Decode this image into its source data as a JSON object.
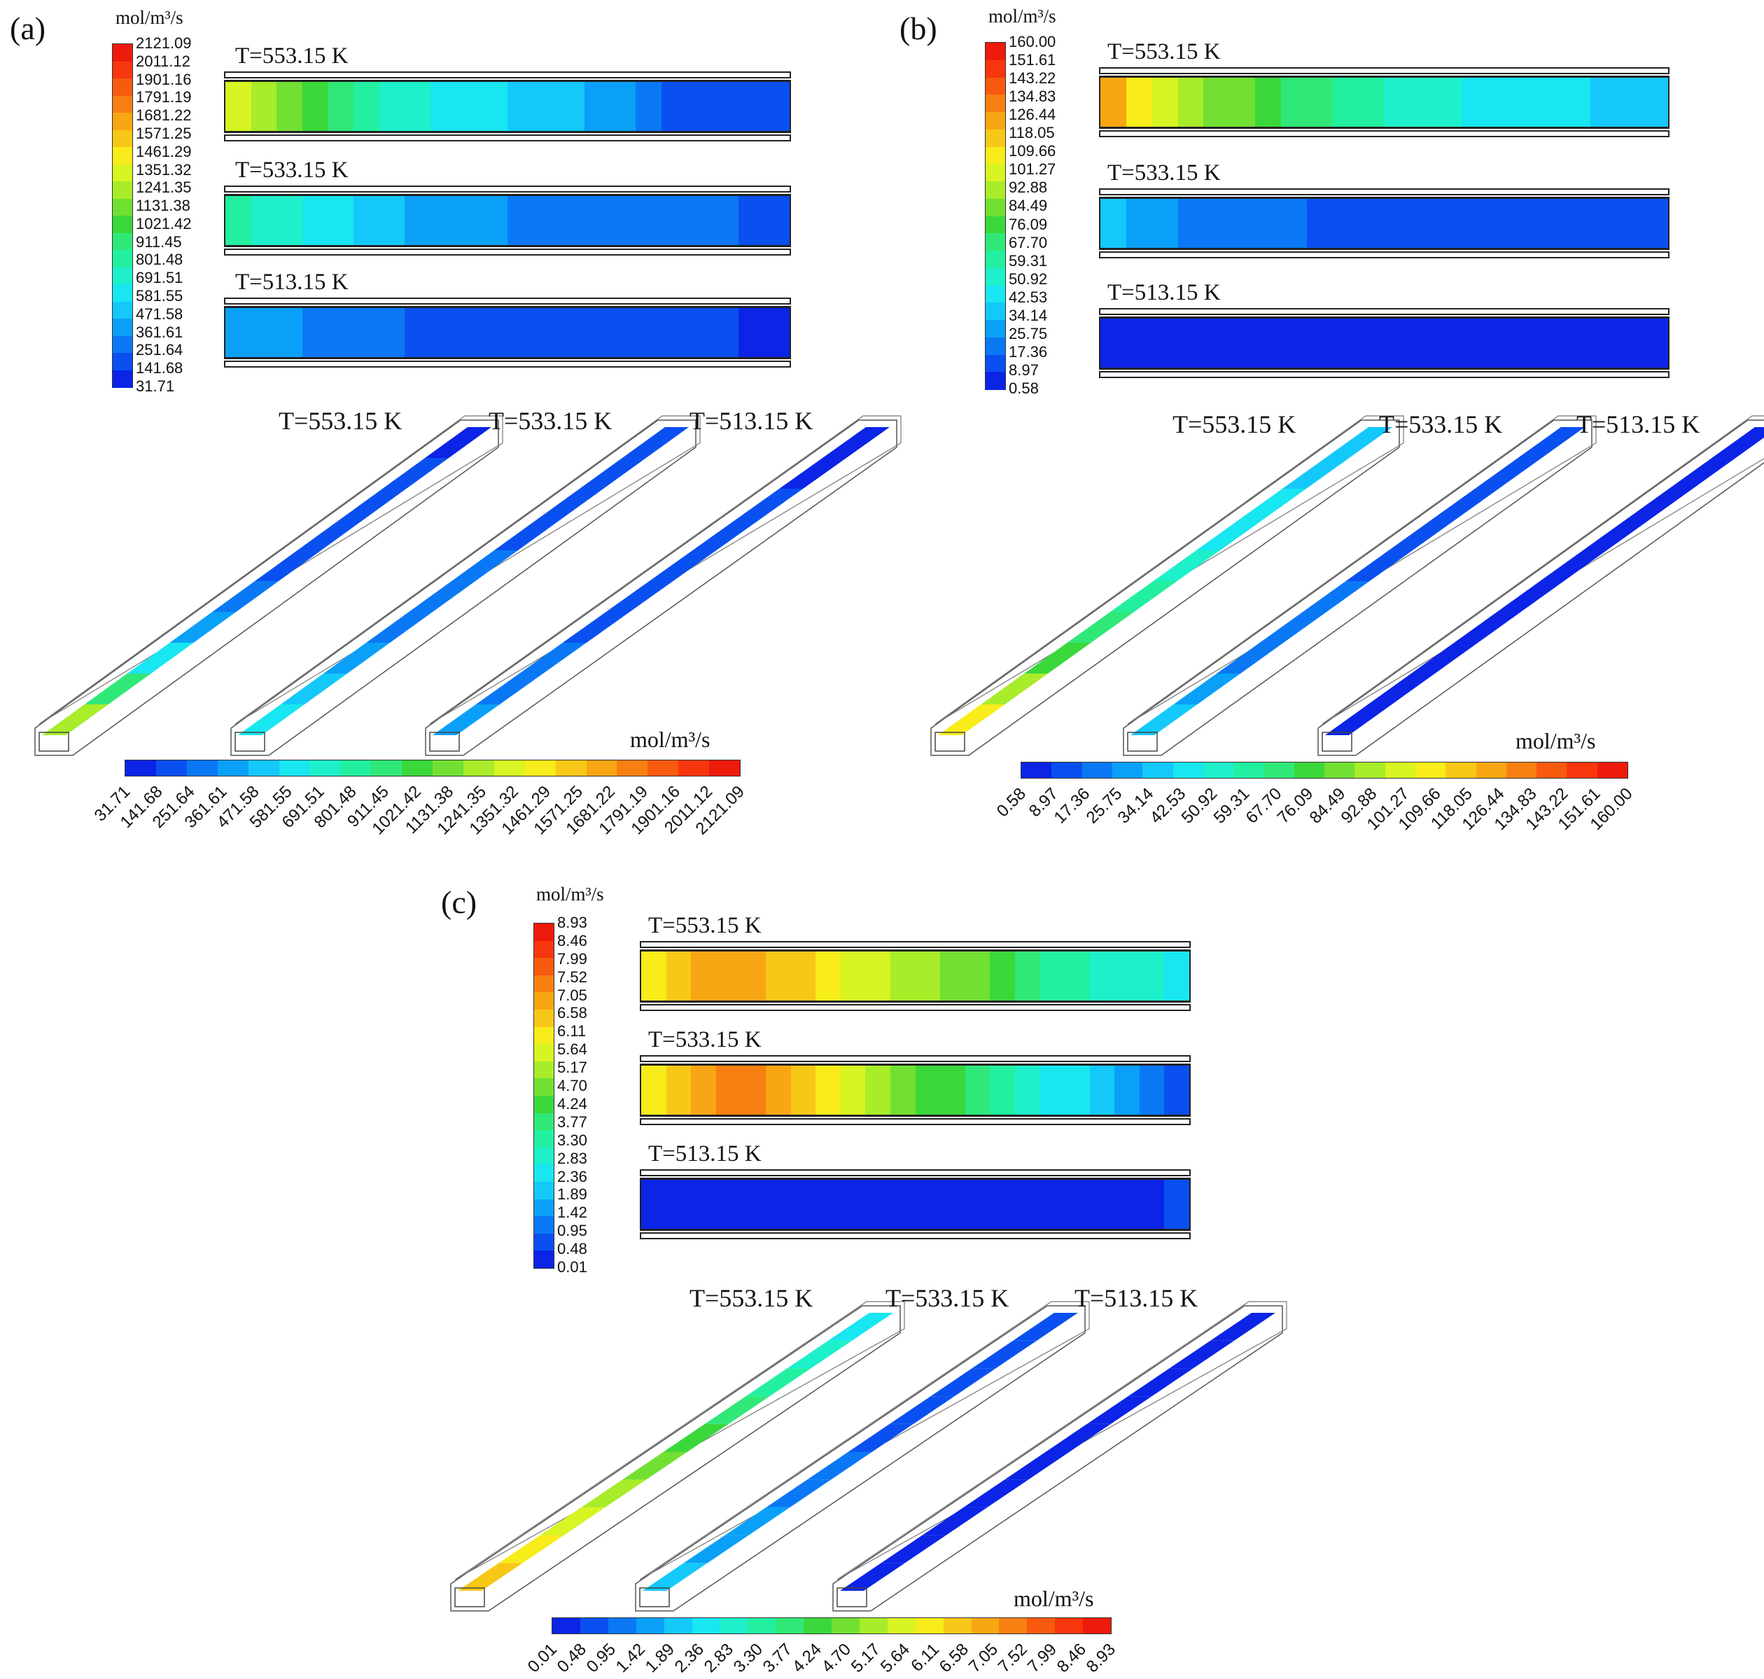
{
  "panels": [
    {
      "label": "(a)",
      "unit": "mol/m³/s",
      "scale_values": [
        "31.71",
        "141.68",
        "251.64",
        "361.61",
        "471.58",
        "581.55",
        "691.51",
        "801.48",
        "911.45",
        "1021.42",
        "1131.38",
        "1241.35",
        "1351.32",
        "1461.29",
        "1571.25",
        "1681.22",
        "1791.19",
        "1901.16",
        "2011.12",
        "2121.09"
      ],
      "rows": [
        {
          "temperature": "T=553.15 K",
          "levels": [
            12,
            11,
            10,
            9,
            8,
            7,
            6,
            6,
            5,
            5,
            5,
            4,
            4,
            4,
            3,
            3,
            2,
            1,
            1,
            1,
            1,
            1
          ]
        },
        {
          "temperature": "T=533.15 K",
          "levels": [
            7,
            6,
            6,
            5,
            5,
            4,
            4,
            3,
            3,
            3,
            3,
            2,
            2,
            2,
            2,
            2,
            2,
            2,
            2,
            2,
            1,
            1
          ]
        },
        {
          "temperature": "T=513.15 K",
          "levels": [
            3,
            3,
            3,
            2,
            2,
            2,
            2,
            1,
            1,
            1,
            1,
            1,
            1,
            1,
            1,
            1,
            1,
            1,
            1,
            1,
            0,
            0
          ]
        }
      ],
      "views_3d": [
        {
          "temperature": "T=553.15 K",
          "levels": [
            11,
            8,
            5,
            3,
            2,
            1,
            1,
            1,
            1,
            0
          ]
        },
        {
          "temperature": "T=533.15 K",
          "levels": [
            5,
            4,
            3,
            2,
            2,
            2,
            1,
            1,
            1,
            1
          ]
        },
        {
          "temperature": "T=513.15 K",
          "levels": [
            3,
            2,
            2,
            1,
            1,
            1,
            1,
            1,
            0,
            0
          ]
        }
      ]
    },
    {
      "label": "(b)",
      "unit": "mol/m³/s",
      "scale_values": [
        "0.58",
        "8.97",
        "17.36",
        "25.75",
        "34.14",
        "42.53",
        "50.92",
        "59.31",
        "67.70",
        "76.09",
        "84.49",
        "92.88",
        "101.27",
        "109.66",
        "118.05",
        "126.44",
        "134.83",
        "143.22",
        "151.61",
        "160.00"
      ],
      "rows": [
        {
          "temperature": "T=553.15 K",
          "levels": [
            15,
            13,
            12,
            11,
            10,
            10,
            9,
            8,
            8,
            7,
            7,
            6,
            6,
            6,
            5,
            5,
            5,
            5,
            5,
            4,
            4,
            4
          ]
        },
        {
          "temperature": "T=533.15 K",
          "levels": [
            4,
            3,
            3,
            2,
            2,
            2,
            2,
            2,
            1,
            1,
            1,
            1,
            1,
            1,
            1,
            1,
            1,
            1,
            1,
            1,
            1,
            1
          ]
        },
        {
          "temperature": "T=513.15 K",
          "levels": [
            0,
            0,
            0,
            0,
            0,
            0,
            0,
            0,
            0,
            0,
            0,
            0,
            0,
            0,
            0,
            0,
            0,
            0,
            0,
            0,
            0,
            0
          ]
        }
      ],
      "views_3d": [
        {
          "temperature": "T=553.15 K",
          "levels": [
            13,
            11,
            9,
            8,
            7,
            6,
            5,
            5,
            4,
            4
          ]
        },
        {
          "temperature": "T=533.15 K",
          "levels": [
            4,
            3,
            2,
            2,
            2,
            1,
            1,
            1,
            1,
            1
          ]
        },
        {
          "temperature": "T=513.15 K",
          "levels": [
            0,
            0,
            0,
            0,
            0,
            0,
            0,
            0,
            0,
            0
          ]
        }
      ]
    },
    {
      "label": "(c)",
      "unit": "mol/m³/s",
      "scale_values": [
        "0.01",
        "0.48",
        "0.95",
        "1.42",
        "1.89",
        "2.36",
        "2.83",
        "3.30",
        "3.77",
        "4.24",
        "4.70",
        "5.17",
        "5.64",
        "6.11",
        "6.58",
        "7.05",
        "7.52",
        "7.99",
        "8.46",
        "8.93"
      ],
      "rows": [
        {
          "temperature": "T=553.15 K",
          "levels": [
            13,
            14,
            15,
            15,
            15,
            14,
            14,
            13,
            12,
            12,
            11,
            11,
            10,
            10,
            9,
            8,
            7,
            7,
            6,
            6,
            6,
            5
          ]
        },
        {
          "temperature": "T=533.15 K",
          "levels": [
            13,
            14,
            15,
            16,
            16,
            15,
            14,
            13,
            12,
            11,
            10,
            9,
            9,
            8,
            7,
            6,
            5,
            5,
            4,
            3,
            2,
            1
          ]
        },
        {
          "temperature": "T=513.15 K",
          "levels": [
            0,
            0,
            0,
            0,
            0,
            0,
            0,
            0,
            0,
            0,
            0,
            0,
            0,
            0,
            0,
            0,
            0,
            0,
            0,
            0,
            0,
            1
          ]
        }
      ],
      "views_3d": [
        {
          "temperature": "T=553.15 K",
          "levels": [
            14,
            13,
            12,
            11,
            10,
            9,
            8,
            7,
            6,
            5
          ]
        },
        {
          "temperature": "T=533.15 K",
          "levels": [
            4,
            3,
            3,
            2,
            2,
            1,
            1,
            1,
            1,
            1
          ]
        },
        {
          "temperature": "T=513.15 K",
          "levels": [
            0,
            0,
            0,
            0,
            0,
            0,
            0,
            0,
            0,
            0
          ]
        }
      ]
    }
  ],
  "colormap": [
    "#0b24e6",
    "#0a50f0",
    "#0a78f5",
    "#0aa0f8",
    "#14c8fa",
    "#18e6f0",
    "#1ef0cc",
    "#22f0a0",
    "#30e878",
    "#3ad83a",
    "#72e032",
    "#a8ec2a",
    "#d8f422",
    "#f8ec1a",
    "#f8c818",
    "#f8a614",
    "#f88012",
    "#f85a10",
    "#f8360e",
    "#ee1a0c"
  ]
}
